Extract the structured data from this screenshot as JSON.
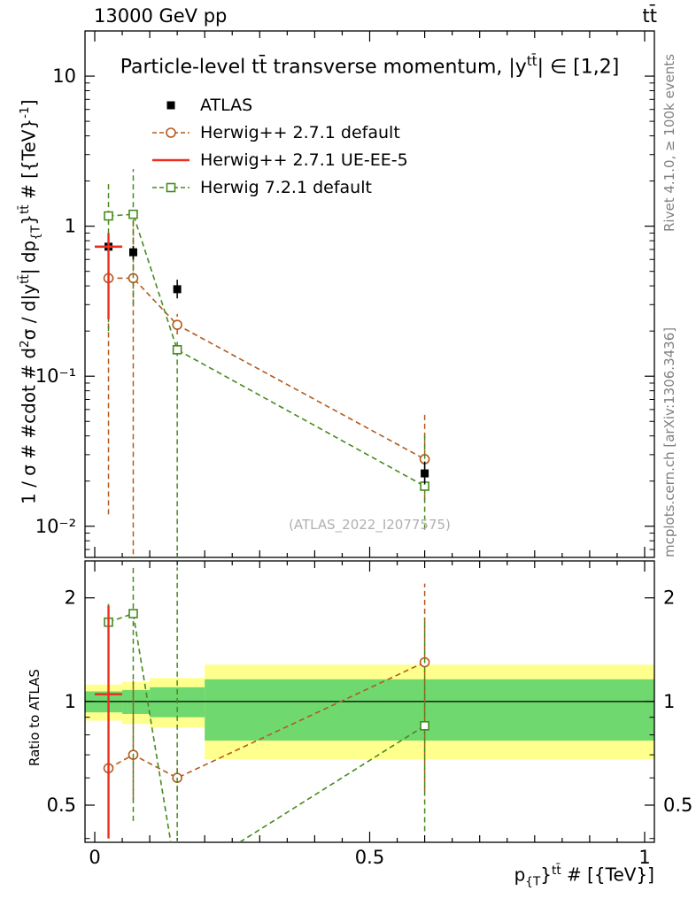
{
  "header": {
    "left": "13000 GeV pp",
    "right": "tt̄"
  },
  "titles": {
    "main_parts": [
      {
        "t": "Particle-level tt̄ transverse momentum, |y"
      },
      {
        "t": "tt̄",
        "s": "sup"
      },
      {
        "t": "| ∈ [1,2]"
      }
    ],
    "watermark": "(ATLAS_2022_I2077575)",
    "right_top": "Rivet 4.1.0, ≥ 100k events",
    "right_bottom": "mcplots.cern.ch [arXiv:1306.3436]"
  },
  "axes": {
    "main_ylabel_parts": [
      {
        "t": "1 / σ # #cdot # d"
      },
      {
        "t": "2",
        "s": "sup"
      },
      {
        "t": "σ / d|y"
      },
      {
        "t": "tt̄",
        "s": "sup"
      },
      {
        "t": "| dp"
      },
      {
        "t": "{T",
        "s": "sub"
      },
      {
        "t": "}"
      },
      {
        "t": "tt̄",
        "s": "sup"
      },
      {
        "t": " # [{TeV}"
      },
      {
        "t": "-1",
        "s": "sup"
      },
      {
        "t": "]"
      }
    ],
    "ratio_ylabel": "Ratio to ATLAS",
    "xlabel_parts": [
      {
        "t": "p"
      },
      {
        "t": "{T",
        "s": "sub"
      },
      {
        "t": "}"
      },
      {
        "t": "tt̄",
        "s": "sup"
      },
      {
        "t": " # [{TeV}]"
      }
    ]
  },
  "legend": [
    {
      "label": "ATLAS",
      "marker": "filled-square",
      "color": "#000000",
      "line": "none"
    },
    {
      "label": "Herwig++ 2.7.1 default",
      "marker": "open-circle",
      "color": "#b35a1f",
      "line": "dashed"
    },
    {
      "label": "Herwig++ 2.7.1 UE-EE-5",
      "marker": "none",
      "color": "#f02e1d",
      "line": "solid"
    },
    {
      "label": "Herwig 7.2.1 default",
      "marker": "open-square",
      "color": "#468a1e",
      "line": "dashed"
    }
  ],
  "chart_data": [
    {
      "id": "main",
      "type": "scatter",
      "title": "Particle-level tt̄ transverse momentum, |y^tt̄| ∈ [1,2]",
      "xlabel": "p_{T}^tt̄ # [{TeV}]",
      "ylabel": "1 / σ # #cdot # d²σ / d|y^tt̄| dp_{T}^tt̄ # [{TeV}^-1]",
      "yscale": "log",
      "xlim": [
        0,
        1
      ],
      "ylim": [
        0.0062,
        20
      ],
      "xticks": [
        {
          "v": 0,
          "label": "0"
        },
        {
          "v": 0.5,
          "label": "0.5"
        },
        {
          "v": 1,
          "label": "1"
        }
      ],
      "yticks": [
        {
          "v": 10,
          "label": "10"
        },
        {
          "v": 1,
          "label": "1"
        },
        {
          "v": 0.1,
          "label": "10⁻¹"
        },
        {
          "v": 0.01,
          "label": "10⁻²"
        }
      ],
      "series": [
        {
          "name": "ATLAS",
          "marker": "filled-square",
          "color": "#000000",
          "line": "none",
          "x": [
            0.025,
            0.07,
            0.15,
            0.6
          ],
          "y": [
            0.73,
            0.67,
            0.38,
            0.0225
          ],
          "ylo": [
            0.66,
            0.6,
            0.33,
            0.019
          ],
          "yhi": [
            0.81,
            0.74,
            0.44,
            0.027
          ]
        },
        {
          "name": "Herwig++ 2.7.1 default",
          "marker": "open-circle",
          "color": "#b35a1f",
          "line": "dashed",
          "x": [
            0.025,
            0.07,
            0.15,
            0.6
          ],
          "y": [
            0.45,
            0.45,
            0.22,
            0.028
          ],
          "ylo": [
            0.012,
            0.0065,
            0.19,
            0.015
          ],
          "yhi": [
            0.62,
            1.25,
            0.26,
            0.056
          ]
        },
        {
          "name": "Herwig++ 2.7.1 UE-EE-5",
          "marker": "none",
          "color": "#f02e1d",
          "line": "solid",
          "x": [
            0.025
          ],
          "y": [
            0.73
          ],
          "ylo": [
            0.24
          ],
          "yhi": [
            0.9
          ],
          "xlo": [
            0.0
          ],
          "xhi": [
            0.05
          ]
        },
        {
          "name": "Herwig 7.2.1 default",
          "marker": "open-square",
          "color": "#468a1e",
          "line": "dashed",
          "x": [
            0.025,
            0.07,
            0.15,
            0.6
          ],
          "y": [
            1.17,
            1.2,
            0.15,
            0.0185
          ],
          "ylo": [
            0.2,
            0.3,
            0.006,
            0.0095
          ],
          "yhi": [
            2.0,
            2.4,
            0.17,
            0.042
          ]
        }
      ]
    },
    {
      "id": "ratio",
      "type": "scatter",
      "ylabel": "Ratio to ATLAS",
      "yscale": "log",
      "xlim": [
        0,
        1
      ],
      "ylim": [
        0.39,
        2.56
      ],
      "yticks": [
        {
          "v": 2,
          "label": "2"
        },
        {
          "v": 1,
          "label": "1"
        },
        {
          "v": 0.5,
          "label": "0.5"
        }
      ],
      "refline": 1,
      "bands": {
        "edges": [
          0,
          0.05,
          0.1,
          0.2,
          1.0
        ],
        "yellow": {
          "color": "#ffff8d",
          "lo": [
            0.88,
            0.86,
            0.84,
            0.68
          ],
          "hi": [
            1.12,
            1.14,
            1.17,
            1.28
          ]
        },
        "green": {
          "color": "#6fd86f",
          "lo": [
            0.93,
            0.92,
            0.9,
            0.77
          ],
          "hi": [
            1.07,
            1.08,
            1.1,
            1.16
          ]
        }
      },
      "series": [
        {
          "name": "Herwig++ 2.7.1 default",
          "marker": "open-circle",
          "color": "#b35a1f",
          "line": "dashed",
          "x": [
            0.025,
            0.07,
            0.15,
            0.6
          ],
          "y": [
            0.64,
            0.7,
            0.6,
            1.3
          ],
          "ylo": [
            0.59,
            0.52,
            0.55,
            0.55
          ],
          "yhi": [
            0.7,
            1.15,
            0.66,
            2.2
          ]
        },
        {
          "name": "Herwig++ 2.7.1 UE-EE-5",
          "marker": "none",
          "color": "#f02e1d",
          "line": "solid",
          "x": [
            0.025
          ],
          "y": [
            1.05
          ],
          "ylo": [
            0.4
          ],
          "yhi": [
            1.9
          ],
          "xlo": [
            0.0
          ],
          "xhi": [
            0.05
          ]
        },
        {
          "name": "Herwig 7.2.1 default",
          "marker": "open-square",
          "color": "#468a1e",
          "line": "dashed",
          "x": [
            0.025,
            0.07,
            0.15,
            0.6
          ],
          "y": [
            1.7,
            1.8,
            0.3,
            0.85
          ],
          "ylo": [
            1.5,
            0.45,
            0.2,
            0.42
          ],
          "yhi": [
            1.92,
            2.5,
            2.45,
            1.75
          ]
        }
      ]
    }
  ]
}
